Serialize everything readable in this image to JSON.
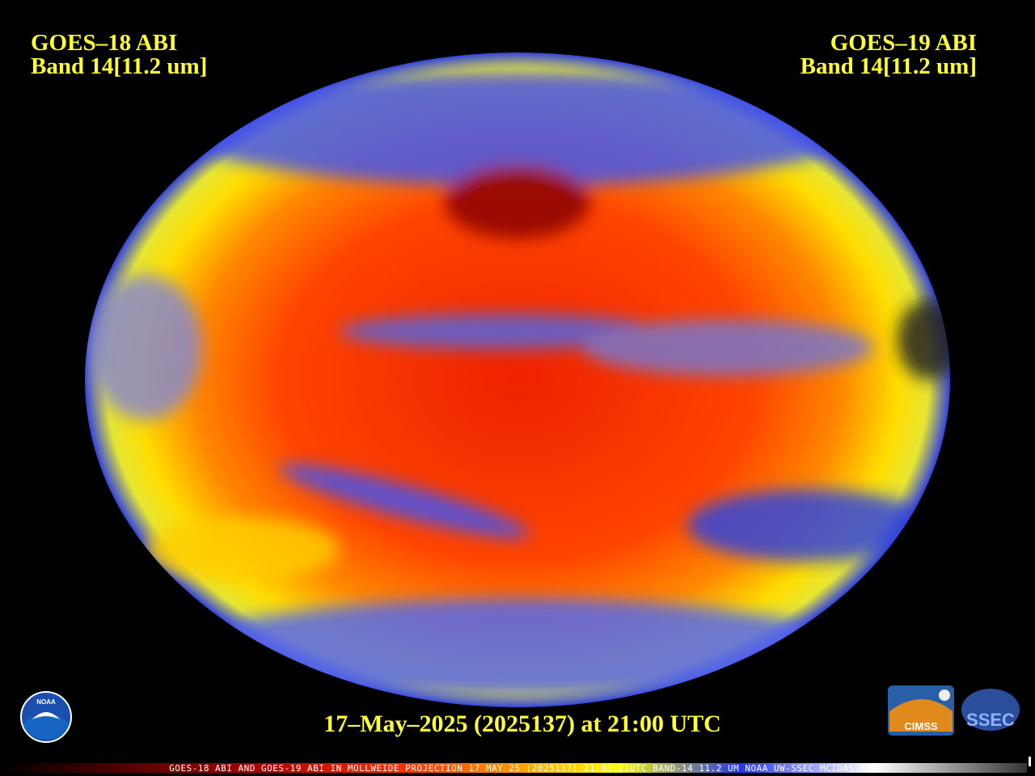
{
  "left_label": {
    "line1": "GOES–18 ABI",
    "line2": "Band 14[11.2 um]"
  },
  "right_label": {
    "line1": "GOES–19 ABI",
    "line2": "Band 14[11.2 um]"
  },
  "timestamp": "17–May–2025 (2025137) at 21:00 UTC",
  "footer": "GOES-18 ABI AND GOES-19 ABI IN MOLLWEIDE PROJECTION 17 MAY 25 (2025137) 21:00:21UTC BAND-14 11.2 UM NOAA UW-SSEC MCIDAS-X",
  "logos": {
    "noaa": "NOAA",
    "cimss": "CIMSS",
    "ssec": "SSEC"
  }
}
